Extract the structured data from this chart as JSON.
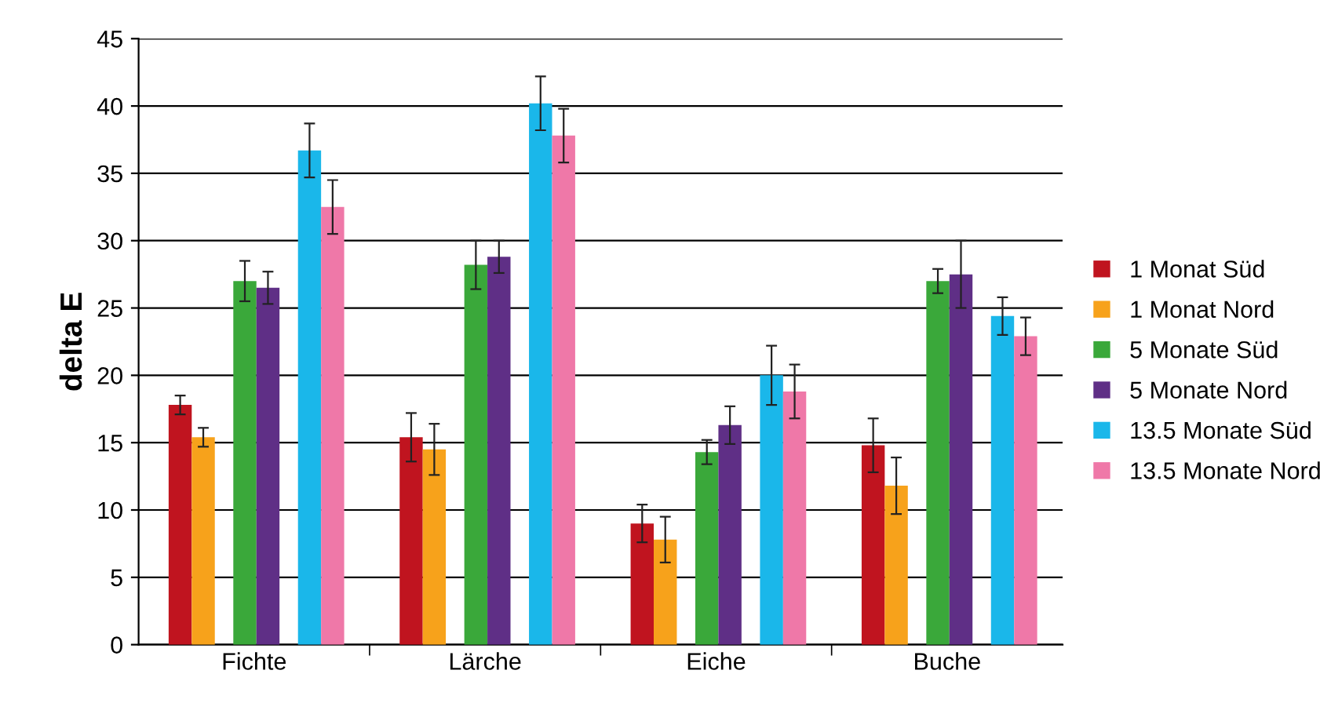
{
  "chart_data": {
    "type": "bar",
    "ylabel": "delta E",
    "categories": [
      "Fichte",
      "Lärche",
      "Eiche",
      "Buche"
    ],
    "ylim": [
      0,
      45
    ],
    "yticks": [
      0,
      5,
      10,
      15,
      20,
      25,
      30,
      35,
      40,
      45
    ],
    "grid": "y",
    "legend": "right",
    "series": [
      {
        "name": "1 Monat Süd",
        "color": "#c0141f",
        "values": [
          17.8,
          15.4,
          9,
          14.8
        ],
        "errors": [
          0.7,
          1.8,
          1.4,
          2
        ]
      },
      {
        "name": "1 Monat Nord",
        "color": "#f7a21b",
        "values": [
          15.4,
          14.5,
          7.8,
          11.8
        ],
        "errors": [
          0.7,
          1.9,
          1.7,
          2.1
        ]
      },
      {
        "name": "5 Monate Süd",
        "color": "#3aa83a",
        "values": [
          27,
          28.2,
          14.3,
          27
        ],
        "errors": [
          1.5,
          1.8,
          0.9,
          0.9
        ]
      },
      {
        "name": "5 Monate Nord",
        "color": "#5f2f86",
        "values": [
          26.5,
          28.8,
          16.3,
          27.5
        ],
        "errors": [
          1.2,
          1.2,
          1.4,
          2.5
        ]
      },
      {
        "name": "13.5 Monate Süd",
        "color": "#1ab7ea",
        "values": [
          36.7,
          40.2,
          20,
          24.4
        ],
        "errors": [
          2,
          2,
          2.2,
          1.4
        ]
      },
      {
        "name": "13.5 Monate Nord",
        "color": "#ef78a8",
        "values": [
          32.5,
          37.8,
          18.8,
          22.9
        ],
        "errors": [
          2,
          2,
          2,
          1.4
        ]
      }
    ]
  }
}
